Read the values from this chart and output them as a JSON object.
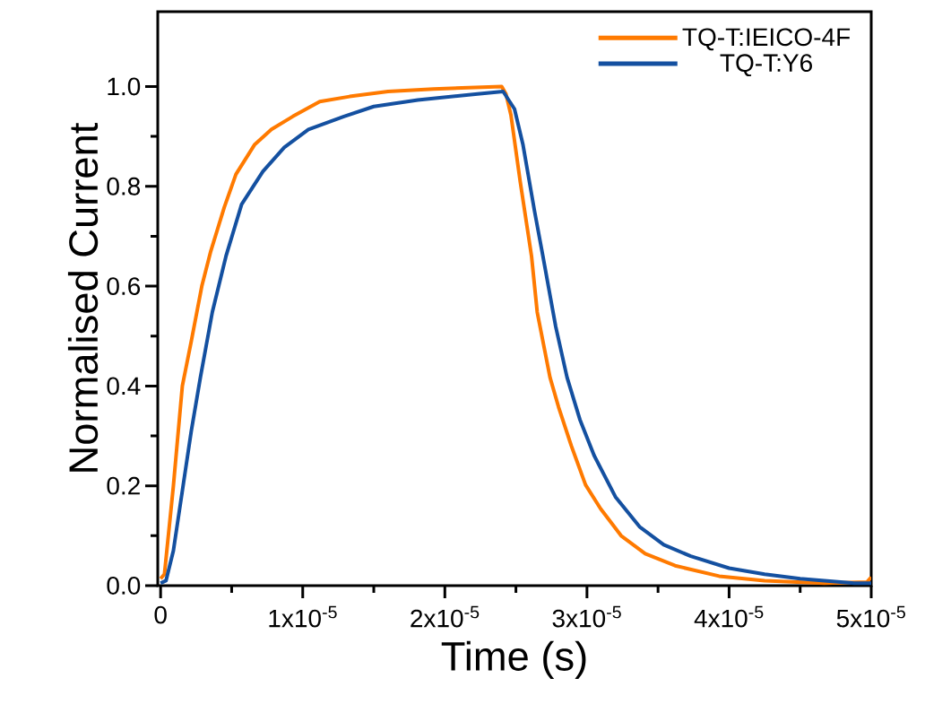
{
  "chart_data": {
    "type": "line",
    "xlabel": "Time (s)",
    "ylabel": "Normalised Current",
    "xlim": [
      -2e-07,
      5e-05
    ],
    "ylim": [
      0,
      1.15
    ],
    "xticks": [
      0,
      {
        "value": 1e-05,
        "label": "1x10$^{-5}$"
      },
      {
        "value": 2e-05,
        "label": "2x10$^{-5}$"
      },
      {
        "value": 3e-05,
        "label": "3x10$^{-5}$"
      },
      {
        "value": 4e-05,
        "label": "4x10$^{-5}$"
      },
      {
        "value": 5e-05,
        "label": "5x10$^{-5}$"
      }
    ],
    "yticks": [
      {
        "value": 0,
        "label": "0.0"
      },
      0.2,
      0.4,
      0.6,
      0.8,
      {
        "value": 1.0,
        "label": "1.0"
      }
    ],
    "legend": "top right",
    "line_style": "solid",
    "series": [
      {
        "name": "TQ-T:IEICO-4F",
        "color": "#ff7a00",
        "x": [
          0,
          2.7e-07,
          9e-07,
          1.53e-06,
          2.16e-06,
          2.9e-06,
          3.53e-06,
          4.48e-06,
          5.3e-06,
          6.6e-06,
          7.8e-06,
          9.3e-06,
          1.12e-05,
          1.33e-05,
          1.6e-05,
          1.92e-05,
          2.4e-05,
          2.43e-05,
          2.465e-05,
          2.53e-05,
          2.61e-05,
          2.65e-05,
          2.74e-05,
          2.8e-05,
          2.89e-05,
          2.99e-05,
          3.096e-05,
          3.24e-05,
          3.41e-05,
          3.62e-05,
          3.93e-05,
          4.25e-05,
          4.67e-05,
          4.97e-05,
          5e-05
        ],
        "values": [
          0.014,
          0.023,
          0.2,
          0.4,
          0.49,
          0.6,
          0.67,
          0.758,
          0.824,
          0.883,
          0.914,
          0.94,
          0.97,
          0.98,
          0.99,
          0.995,
          1.0,
          0.985,
          0.943,
          0.81,
          0.66,
          0.548,
          0.417,
          0.358,
          0.28,
          0.202,
          0.154,
          0.1,
          0.064,
          0.04,
          0.019,
          0.01,
          0.005,
          0.007,
          0.017
        ]
      },
      {
        "name": "TQ-T:Y6",
        "color": "#1450a0",
        "x": [
          0,
          3.8e-07,
          9e-07,
          1.53e-06,
          2.16e-06,
          2.8e-06,
          3.64e-06,
          4.6e-06,
          5.7e-06,
          7.2e-06,
          8.7e-06,
          1.04e-05,
          1.29e-05,
          1.5e-05,
          1.81e-05,
          2.23e-05,
          2.41e-05,
          2.49e-05,
          2.55e-05,
          2.63e-05,
          2.69e-05,
          2.78e-05,
          2.86e-05,
          2.95e-05,
          3.05e-05,
          3.2e-05,
          3.37e-05,
          3.54e-05,
          3.73e-05,
          4e-05,
          4.25e-05,
          4.5e-05,
          4.88e-05,
          5e-05
        ],
        "values": [
          0.005,
          0.01,
          0.07,
          0.19,
          0.31,
          0.417,
          0.548,
          0.66,
          0.764,
          0.83,
          0.878,
          0.914,
          0.94,
          0.96,
          0.973,
          0.985,
          0.99,
          0.955,
          0.883,
          0.752,
          0.66,
          0.519,
          0.417,
          0.333,
          0.261,
          0.178,
          0.118,
          0.082,
          0.059,
          0.035,
          0.023,
          0.014,
          0.005,
          0.005
        ]
      }
    ]
  }
}
